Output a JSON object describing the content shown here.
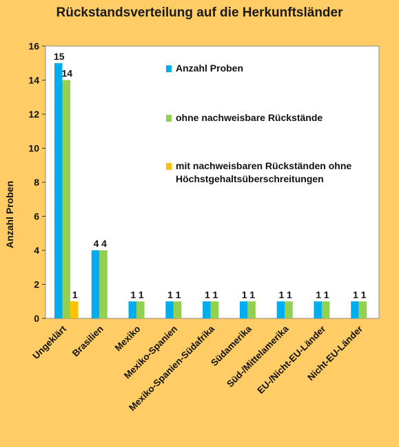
{
  "title": "Rückstandsverteilung auf die Herkunftsländer",
  "chart_data": {
    "type": "bar",
    "title": "Rückstandsverteilung auf die Herkunftsländer",
    "ylabel": "Anzahl Proben",
    "xlabel": "",
    "ylim": [
      0,
      16
    ],
    "yticks": [
      0,
      2,
      4,
      6,
      8,
      10,
      12,
      14,
      16
    ],
    "grid": false,
    "legend_position": "top-right (inside plot)",
    "categories": [
      "Ungeklärt",
      "Brasilien",
      "Mexiko",
      "Mexiko-Spanien",
      "Mexiko-Spanien-Südafrika",
      "Südamerika",
      "Süd-/Mittelamerika",
      "EU-/Nicht-EU-Länder",
      "Nicht-EU-Länder"
    ],
    "series": [
      {
        "name": "Anzahl Proben",
        "color": "#00AEEF",
        "values": [
          15,
          4,
          1,
          1,
          1,
          1,
          1,
          1,
          1
        ]
      },
      {
        "name": "ohne nachweisbare Rückstände",
        "color": "#92D050",
        "values": [
          14,
          4,
          1,
          1,
          1,
          1,
          1,
          1,
          1
        ]
      },
      {
        "name": "mit nachweisbaren Rückständen ohne Höchstgehaltsüberschreitungen",
        "legend_lines": [
          "mit nachweisbaren Rückständen ohne",
          "Höchstgehaltsüberschreitungen"
        ],
        "color": "#FFC000",
        "values": [
          1,
          0,
          0,
          0,
          0,
          0,
          0,
          0,
          0
        ]
      }
    ]
  }
}
